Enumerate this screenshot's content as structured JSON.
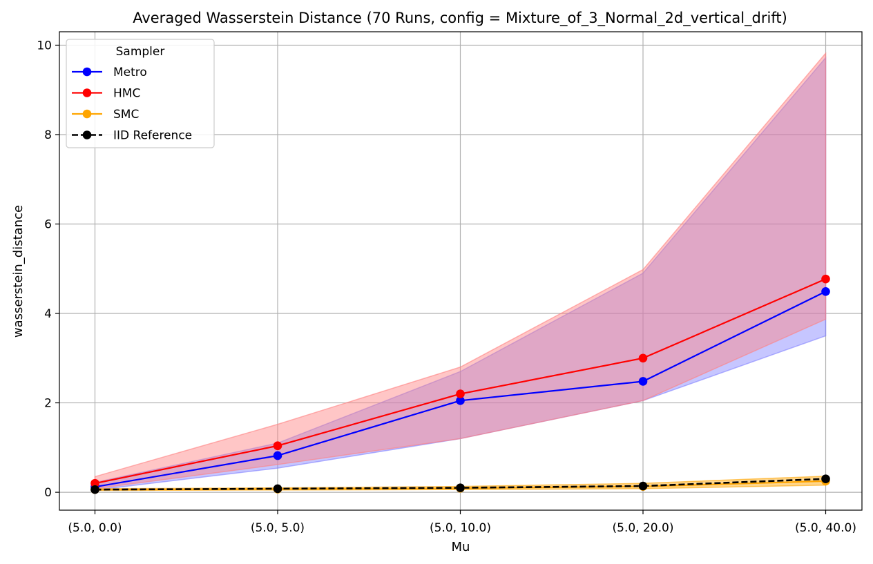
{
  "chart_data": {
    "type": "line",
    "title": "Averaged Wasserstein Distance (70 Runs, config = Mixture_of_3_Normal_2d_vertical_drift)",
    "xlabel": "Mu",
    "ylabel": "wasserstein_distance",
    "categories": [
      "(5.0, 0.0)",
      "(5.0, 5.0)",
      "(5.0, 10.0)",
      "(5.0, 20.0)",
      "(5.0, 40.0)"
    ],
    "ylim": [
      -0.4,
      10.3
    ],
    "yticks": [
      0,
      2,
      4,
      6,
      8,
      10
    ],
    "grid": true,
    "legend": {
      "title": "Sampler",
      "placement": "top-left"
    },
    "series": [
      {
        "name": "Metro",
        "color": "#0000ff",
        "linestyle": "solid",
        "values": [
          0.12,
          0.82,
          2.05,
          2.48,
          4.49
        ],
        "band_lower": [
          0.05,
          0.54,
          1.2,
          2.05,
          3.5
        ],
        "band_upper": [
          0.22,
          1.1,
          2.7,
          4.9,
          9.72
        ],
        "band_color": "#8080ff"
      },
      {
        "name": "HMC",
        "color": "#ff0000",
        "linestyle": "solid",
        "values": [
          0.2,
          1.04,
          2.2,
          3.0,
          4.77
        ],
        "band_lower": [
          0.08,
          0.62,
          1.2,
          2.05,
          3.87
        ],
        "band_upper": [
          0.35,
          1.52,
          2.8,
          4.98,
          9.82
        ],
        "band_color": "#ff8080"
      },
      {
        "name": "SMC",
        "color": "#ffa500",
        "linestyle": "solid",
        "values": [
          0.06,
          0.07,
          0.09,
          0.13,
          0.25
        ],
        "band_lower": [
          0.04,
          0.05,
          0.06,
          0.08,
          0.16
        ],
        "band_upper": [
          0.08,
          0.1,
          0.13,
          0.2,
          0.36
        ],
        "band_color": "#ffa500"
      },
      {
        "name": "IID Reference",
        "color": "#000000",
        "linestyle": "dashed",
        "values": [
          0.06,
          0.08,
          0.1,
          0.14,
          0.3
        ]
      }
    ]
  }
}
